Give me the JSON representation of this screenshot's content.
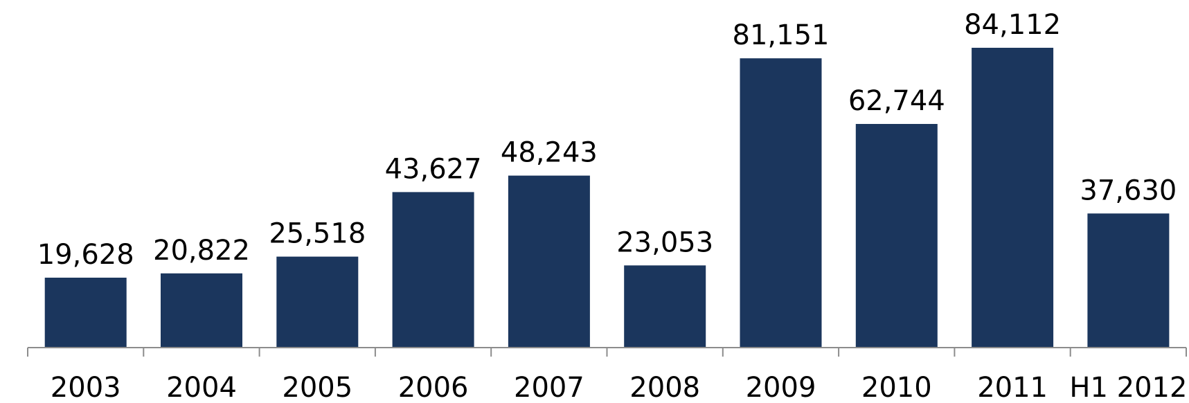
{
  "chart_data": {
    "type": "bar",
    "categories": [
      "2003",
      "2004",
      "2005",
      "2006",
      "2007",
      "2008",
      "2009",
      "2010",
      "2011",
      "H1 2012"
    ],
    "values": [
      19628,
      20822,
      25518,
      43627,
      48243,
      23053,
      81151,
      62744,
      84112,
      37630
    ],
    "value_labels": [
      "19,628",
      "20,822",
      "25,518",
      "43,627",
      "48,243",
      "23,053",
      "81,151",
      "62,744",
      "84,112",
      "37,630"
    ],
    "title": "",
    "xlabel": "",
    "ylabel": "",
    "ylim": [
      0,
      84112
    ],
    "grid": false,
    "legend": "none",
    "colors": {
      "bar": "#1b365d",
      "axis": "#8c8c8c",
      "text": "#000000"
    }
  }
}
